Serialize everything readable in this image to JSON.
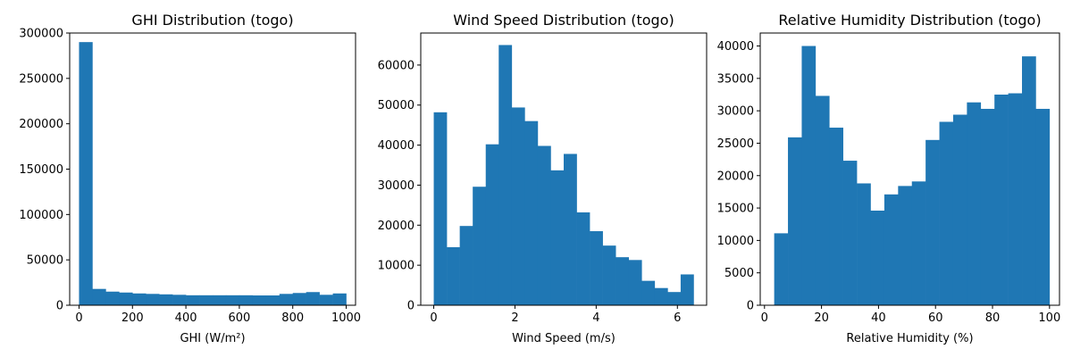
{
  "chart_data": [
    {
      "type": "bar",
      "title": "GHI Distribution (togo)",
      "xlabel": "GHI (W/m²)",
      "ylabel": "",
      "xlim": [
        -35,
        1035
      ],
      "ylim": [
        0,
        300000
      ],
      "xticks": [
        0,
        200,
        400,
        600,
        800,
        1000
      ],
      "yticks": [
        0,
        50000,
        100000,
        150000,
        200000,
        250000,
        300000
      ],
      "bin_start": 0,
      "bin_width": 50,
      "values": [
        290000,
        18000,
        15000,
        14000,
        13000,
        12500,
        12000,
        11500,
        11000,
        11000,
        11000,
        11000,
        11000,
        10800,
        10800,
        12500,
        13500,
        14500,
        11500,
        13000
      ],
      "color": "#1f77b4"
    },
    {
      "type": "bar",
      "title": "Wind Speed Distribution (togo)",
      "xlabel": "Wind Speed (m/s)",
      "ylabel": "",
      "xlim": [
        -0.32,
        6.72
      ],
      "ylim": [
        0,
        68000
      ],
      "xticks": [
        0,
        2,
        4,
        6
      ],
      "yticks": [
        0,
        10000,
        20000,
        30000,
        40000,
        50000,
        60000
      ],
      "bin_start": 0,
      "bin_width": 0.32,
      "values": [
        48200,
        14500,
        19800,
        29600,
        40200,
        65000,
        49400,
        46000,
        39800,
        33700,
        37800,
        23200,
        18500,
        14900,
        12000,
        11300,
        6100,
        4300,
        3300,
        7700
      ],
      "color": "#1f77b4"
    },
    {
      "type": "bar",
      "title": "Relative Humidity Distribution (togo)",
      "xlabel": "Relative Humidity (%)",
      "ylabel": "",
      "xlim": [
        -1.5,
        103.5
      ],
      "ylim": [
        0,
        42000
      ],
      "xticks": [
        0,
        20,
        40,
        60,
        80,
        100
      ],
      "yticks": [
        0,
        5000,
        10000,
        15000,
        20000,
        25000,
        30000,
        35000,
        40000
      ],
      "bin_start": 3.4,
      "bin_width": 4.83,
      "values": [
        11100,
        25900,
        40000,
        32300,
        27400,
        22300,
        18800,
        14600,
        17100,
        18400,
        19100,
        25500,
        28300,
        29400,
        31300,
        30300,
        32500,
        32700,
        38400,
        30300
      ],
      "color": "#1f77b4"
    }
  ]
}
